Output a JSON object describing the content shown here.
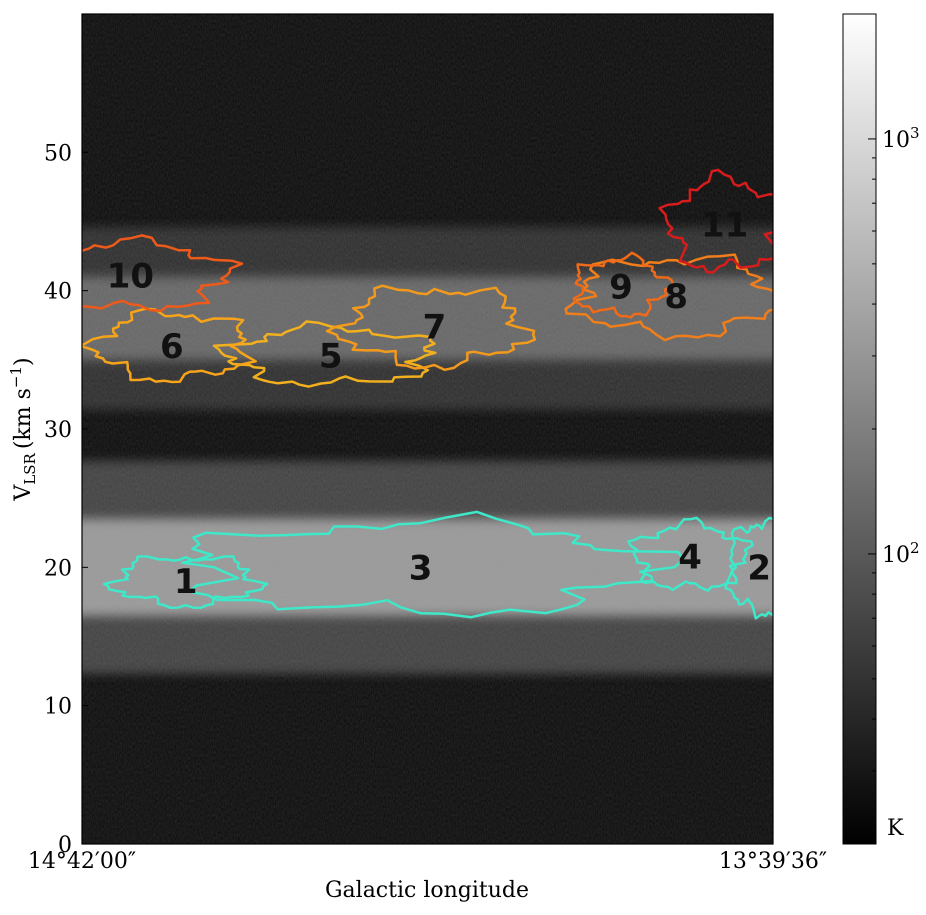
{
  "chart_data": {
    "type": "heatmap",
    "title": "",
    "xlabel": "Galactic longitude",
    "ylabel": "V",
    "ylabel_sub": "LSR",
    "ylabel_units": "(km s",
    "ylabel_sup": "−1",
    "ylabel_close": ")",
    "ylim": [
      0,
      60
    ],
    "yticks": [
      0,
      10,
      20,
      30,
      40,
      50
    ],
    "xtick_labels": [
      "14°42′00″",
      "13°39′36″"
    ],
    "colorbar": {
      "scale": "log",
      "range": [
        20,
        2000
      ],
      "ticks": [
        {
          "value": 100,
          "base": "10",
          "exp": "2"
        },
        {
          "value": 1000,
          "base": "10",
          "exp": "3"
        }
      ],
      "unit": "K",
      "colormap": "gray"
    },
    "emission_bands": [
      {
        "name": "lower",
        "v_center": 20,
        "v_halfwidth": 3.5,
        "intensity": 0.82
      },
      {
        "name": "upper",
        "v_center": 38,
        "v_halfwidth": 3.0,
        "intensity": 0.48
      }
    ],
    "clumps": [
      {
        "id": "1",
        "label_pos": [
          0.15,
          19
        ],
        "color": "#3ee8c8"
      },
      {
        "id": "2",
        "label_pos": [
          0.98,
          20
        ],
        "color": "#3ee8c8"
      },
      {
        "id": "3",
        "label_pos": [
          0.49,
          20
        ],
        "color": "#3ee8c8"
      },
      {
        "id": "4",
        "label_pos": [
          0.88,
          20.8
        ],
        "color": "#3ee8c8"
      },
      {
        "id": "5",
        "label_pos": [
          0.36,
          35.3
        ],
        "color": "#f2b01e"
      },
      {
        "id": "6",
        "label_pos": [
          0.13,
          36
        ],
        "color": "#f7a41a"
      },
      {
        "id": "7",
        "label_pos": [
          0.51,
          37.4
        ],
        "color": "#f39a1c"
      },
      {
        "id": "8",
        "label_pos": [
          0.86,
          39.6
        ],
        "color": "#f07e1a"
      },
      {
        "id": "9",
        "label_pos": [
          0.78,
          40.3
        ],
        "color": "#f06a18"
      },
      {
        "id": "10",
        "label_pos": [
          0.07,
          41.1
        ],
        "color": "#ee5a1a"
      },
      {
        "id": "11",
        "label_pos": [
          0.93,
          44.8
        ],
        "color": "#d81c1c"
      }
    ]
  }
}
